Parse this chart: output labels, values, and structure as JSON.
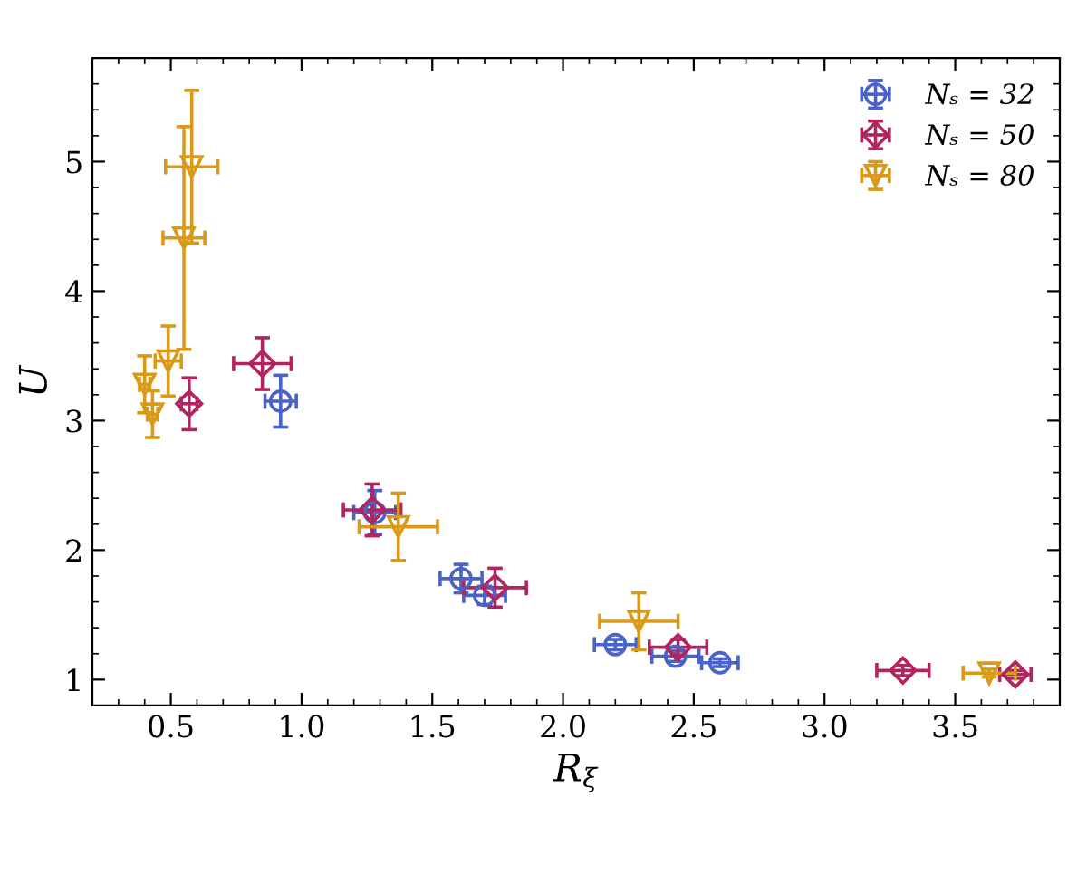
{
  "chart_data": {
    "type": "scatter",
    "xlabel": "R$_{ξ}$",
    "ylabel": "U",
    "xlim": [
      0.2,
      3.9
    ],
    "ylim": [
      0.8,
      5.8
    ],
    "xticks": [
      0.5,
      {
        "value": 1.0,
        "label": "1.0"
      },
      1.5,
      {
        "value": 2.0,
        "label": "2.0"
      },
      2.5,
      {
        "value": 3.0,
        "label": "3.0"
      },
      3.5
    ],
    "yticks": [
      1,
      2,
      3,
      4,
      5
    ],
    "grid": false,
    "legend": "top right",
    "series": [
      {
        "name": "Nₛ = 32",
        "color": "#4a63c8",
        "marker": "circle",
        "x": [
          0.92,
          1.28,
          1.61,
          1.7,
          2.2,
          2.43,
          2.6
        ],
        "values": [
          3.15,
          2.29,
          1.78,
          1.65,
          1.27,
          1.18,
          1.13
        ],
        "xerrors": [
          0.06,
          0.08,
          0.08,
          0.08,
          0.08,
          0.09,
          0.07
        ],
        "errors": [
          0.2,
          0.17,
          0.11,
          0.07,
          0.04,
          0.04,
          0.03
        ]
      },
      {
        "name": "Nₛ = 50",
        "color": "#b0245f",
        "marker": "diamond",
        "x": [
          0.57,
          0.85,
          1.27,
          1.74,
          2.44,
          3.3,
          3.73
        ],
        "values": [
          3.13,
          3.44,
          2.31,
          1.71,
          1.25,
          1.07,
          1.04
        ],
        "xerrors": [
          0.03,
          0.11,
          0.11,
          0.12,
          0.11,
          0.1,
          0.06
        ],
        "errors": [
          0.2,
          0.2,
          0.2,
          0.15,
          0.06,
          0.04,
          0.03
        ]
      },
      {
        "name": "Nₛ = 80",
        "color": "#d99a1a",
        "marker": "triangle",
        "x": [
          0.4,
          0.43,
          0.49,
          0.55,
          0.58,
          1.37,
          2.29,
          3.63
        ],
        "values": [
          3.28,
          3.05,
          3.46,
          4.41,
          4.96,
          2.18,
          1.45,
          1.05
        ],
        "xerrors": [
          0.02,
          0.02,
          0.05,
          0.08,
          0.1,
          0.15,
          0.15,
          0.1
        ],
        "errors": [
          0.22,
          0.18,
          0.27,
          0.86,
          0.59,
          0.26,
          0.22,
          0.03
        ]
      }
    ]
  }
}
